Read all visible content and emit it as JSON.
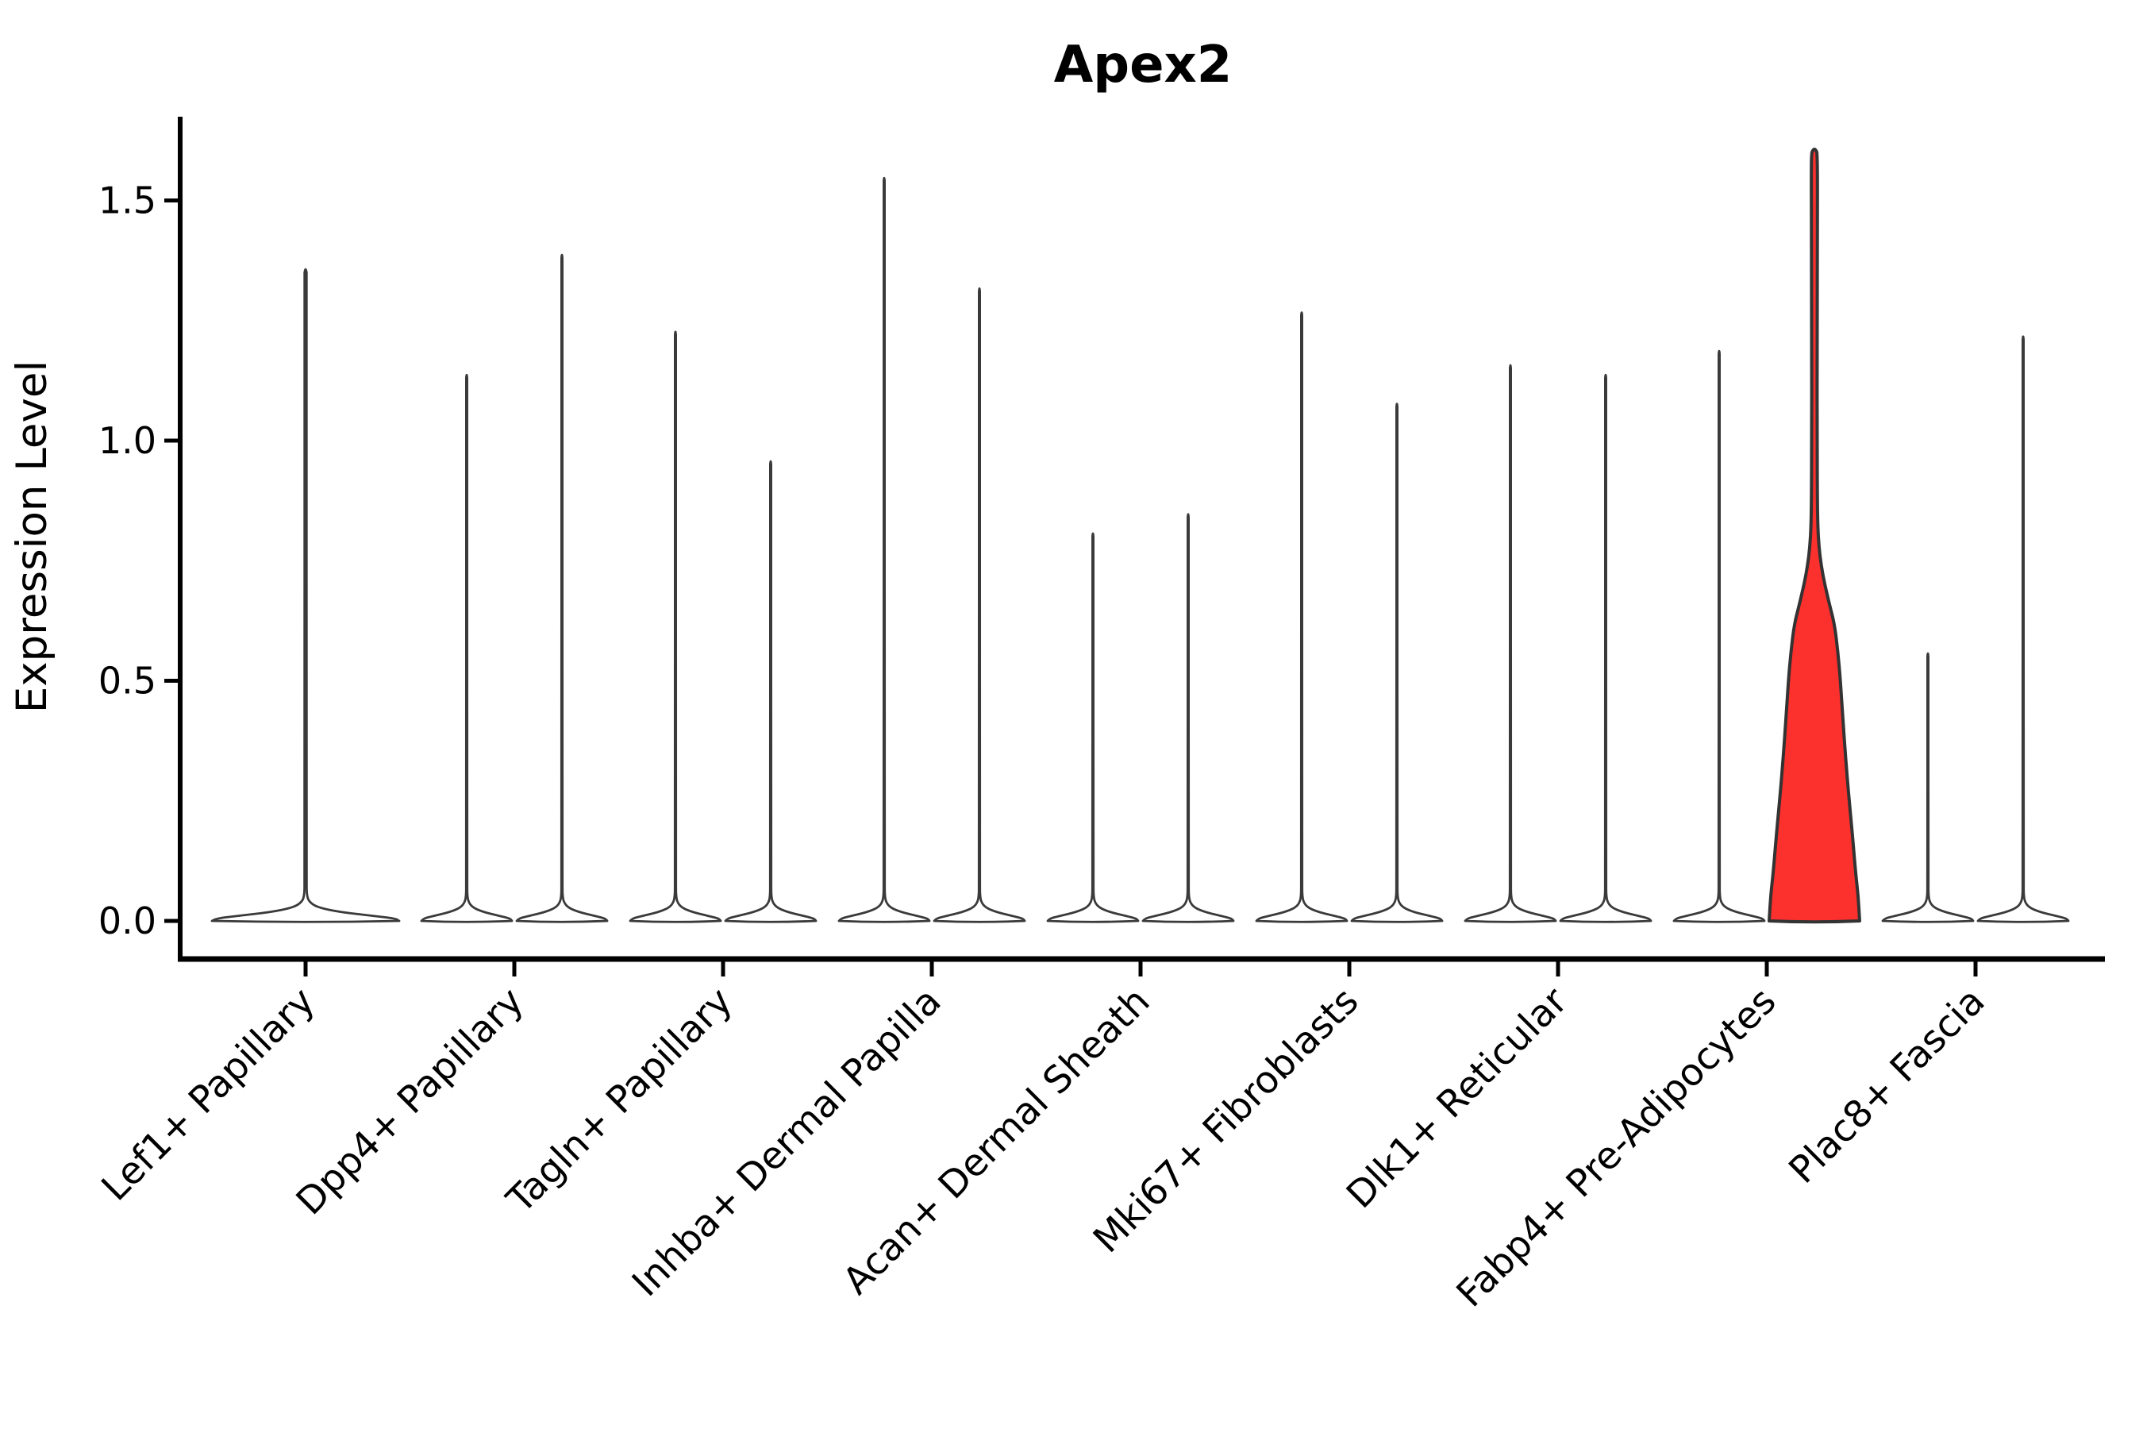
{
  "title": "Apex2",
  "y_axis": {
    "label": "Expression Level",
    "tick_labels": [
      "0.0",
      "0.5",
      "1.0",
      "1.5"
    ],
    "tick_values": [
      0,
      0.5,
      1.0,
      1.5
    ]
  },
  "colors": {
    "violin_outline": "#3a3a3a",
    "violin_fill": "#ffffff",
    "highlight_fill": "#fc302d",
    "highlight_outline": "#333333",
    "spine": "#000000",
    "text": "#000000",
    "background": "#ffffff"
  },
  "chart_data": {
    "type": "violin",
    "title": "Apex2",
    "xlabel": "",
    "ylabel": "Expression Level",
    "ylim": [
      -0.079,
      1.675
    ],
    "grid": false,
    "legend": "none",
    "categories": [
      "Lef1+ Papillary",
      "Dpp4+ Papillary",
      "Tagln+ Papillary",
      "Inhba+ Dermal Papilla",
      "Acan+ Dermal Sheath",
      "Mki67+ Fibroblasts",
      "Dlk1+ Reticular",
      "Fabp4+ Pre-Adipocytes",
      "Plac8+ Fascia"
    ],
    "description": "Violin plot of Apex2 expression; most violins collapse to a wide base at 0 with a thin spike of rare expressing cells; the right-hand violin of Fabp4+ Pre-Adipocytes is filled red and has a broad body of expressing cells.",
    "violins": [
      {
        "category_index": 0,
        "position": "center",
        "max_expression": 1.36,
        "highlighted": false
      },
      {
        "category_index": 1,
        "position": "left",
        "max_expression": 1.14,
        "highlighted": false
      },
      {
        "category_index": 1,
        "position": "right",
        "max_expression": 1.39,
        "highlighted": false
      },
      {
        "category_index": 2,
        "position": "left",
        "max_expression": 1.23,
        "highlighted": false
      },
      {
        "category_index": 2,
        "position": "right",
        "max_expression": 0.96,
        "highlighted": false
      },
      {
        "category_index": 3,
        "position": "left",
        "max_expression": 1.55,
        "highlighted": false
      },
      {
        "category_index": 3,
        "position": "right",
        "max_expression": 1.32,
        "highlighted": false
      },
      {
        "category_index": 4,
        "position": "left",
        "max_expression": 0.81,
        "highlighted": false
      },
      {
        "category_index": 4,
        "position": "right",
        "max_expression": 0.85,
        "highlighted": false
      },
      {
        "category_index": 5,
        "position": "left",
        "max_expression": 1.27,
        "highlighted": false
      },
      {
        "category_index": 5,
        "position": "right",
        "max_expression": 1.08,
        "highlighted": false
      },
      {
        "category_index": 6,
        "position": "left",
        "max_expression": 1.16,
        "highlighted": false
      },
      {
        "category_index": 6,
        "position": "right",
        "max_expression": 1.14,
        "highlighted": false
      },
      {
        "category_index": 7,
        "position": "left",
        "max_expression": 1.19,
        "highlighted": false
      },
      {
        "category_index": 7,
        "position": "right",
        "max_expression": 1.61,
        "highlighted": true
      },
      {
        "category_index": 8,
        "position": "left",
        "max_expression": 0.56,
        "highlighted": false
      },
      {
        "category_index": 8,
        "position": "right",
        "max_expression": 1.22,
        "highlighted": false
      }
    ],
    "highlight_body_profile": [
      [
        0.0,
        1.0
      ],
      [
        0.05,
        0.97
      ],
      [
        0.1,
        0.91
      ],
      [
        0.18,
        0.84
      ],
      [
        0.26,
        0.76
      ],
      [
        0.34,
        0.69
      ],
      [
        0.42,
        0.63
      ],
      [
        0.5,
        0.575
      ],
      [
        0.56,
        0.52
      ],
      [
        0.62,
        0.44
      ],
      [
        0.66,
        0.33
      ],
      [
        0.7,
        0.23
      ],
      [
        0.74,
        0.15
      ],
      [
        0.78,
        0.1
      ],
      [
        0.82,
        0.075
      ],
      [
        0.88,
        0.065
      ],
      [
        1.0,
        0.06
      ],
      [
        1.2,
        0.06
      ],
      [
        1.4,
        0.065
      ],
      [
        1.58,
        0.07
      ]
    ],
    "spike_base_profile": [
      [
        0.0,
        1.0
      ],
      [
        0.005,
        0.96
      ],
      [
        0.01,
        0.75
      ],
      [
        0.018,
        0.38
      ],
      [
        0.028,
        0.13
      ],
      [
        0.04,
        0.035
      ],
      [
        0.055,
        0.013
      ]
    ]
  }
}
